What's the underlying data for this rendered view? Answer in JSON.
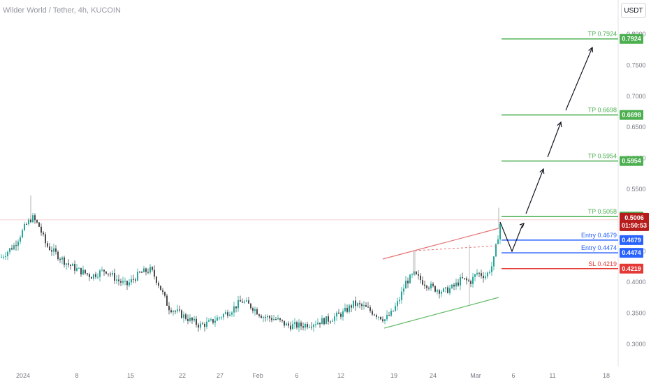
{
  "header": {
    "title": "Wilder World / Tether, 4h, KUCOIN",
    "currency": "USDT"
  },
  "colors": {
    "up": "#26a69a",
    "down": "#4a4a4a",
    "green": "#4caf50",
    "blue": "#2962ff",
    "red": "#e53935",
    "price": "#b71c1c"
  },
  "chart_data": {
    "type": "candlestick",
    "y_ticks": [
      "0.3000",
      "0.3500",
      "0.4000",
      "0.4500",
      "0.5000",
      "0.5500",
      "0.6000",
      "0.6500",
      "0.7000",
      "0.7500",
      "0.8000"
    ],
    "x_ticks": [
      "2024",
      "8",
      "15",
      "22",
      "27",
      "Feb",
      "6",
      "12",
      "19",
      "24",
      "Mar",
      "6",
      "11",
      "18"
    ],
    "levels": [
      {
        "label": "TP 0.7924",
        "value": 0.7924,
        "badge": "0.7924",
        "color": "#4caf50"
      },
      {
        "label": "TP 0.6698",
        "value": 0.6698,
        "badge": "0.6698",
        "color": "#4caf50"
      },
      {
        "label": "TP 0.5954",
        "value": 0.5954,
        "badge": "0.5954",
        "color": "#4caf50"
      },
      {
        "label": "TP 0.5058",
        "value": 0.5058,
        "badge": "0.5058",
        "color": "#4caf50"
      },
      {
        "label": "Entry 0.4679",
        "value": 0.4679,
        "badge": "0.4679",
        "color": "#2962ff"
      },
      {
        "label": "Entry 0.4474",
        "value": 0.4474,
        "badge": "0.4474",
        "color": "#2962ff"
      },
      {
        "label": "SL 0.4219",
        "value": 0.4219,
        "badge": "0.4219",
        "color": "#e53935"
      }
    ],
    "current_price": {
      "value": "0.5006",
      "countdown": "01:50:53",
      "level": 0.5006
    },
    "ylim": [
      0.29,
      0.82
    ]
  }
}
